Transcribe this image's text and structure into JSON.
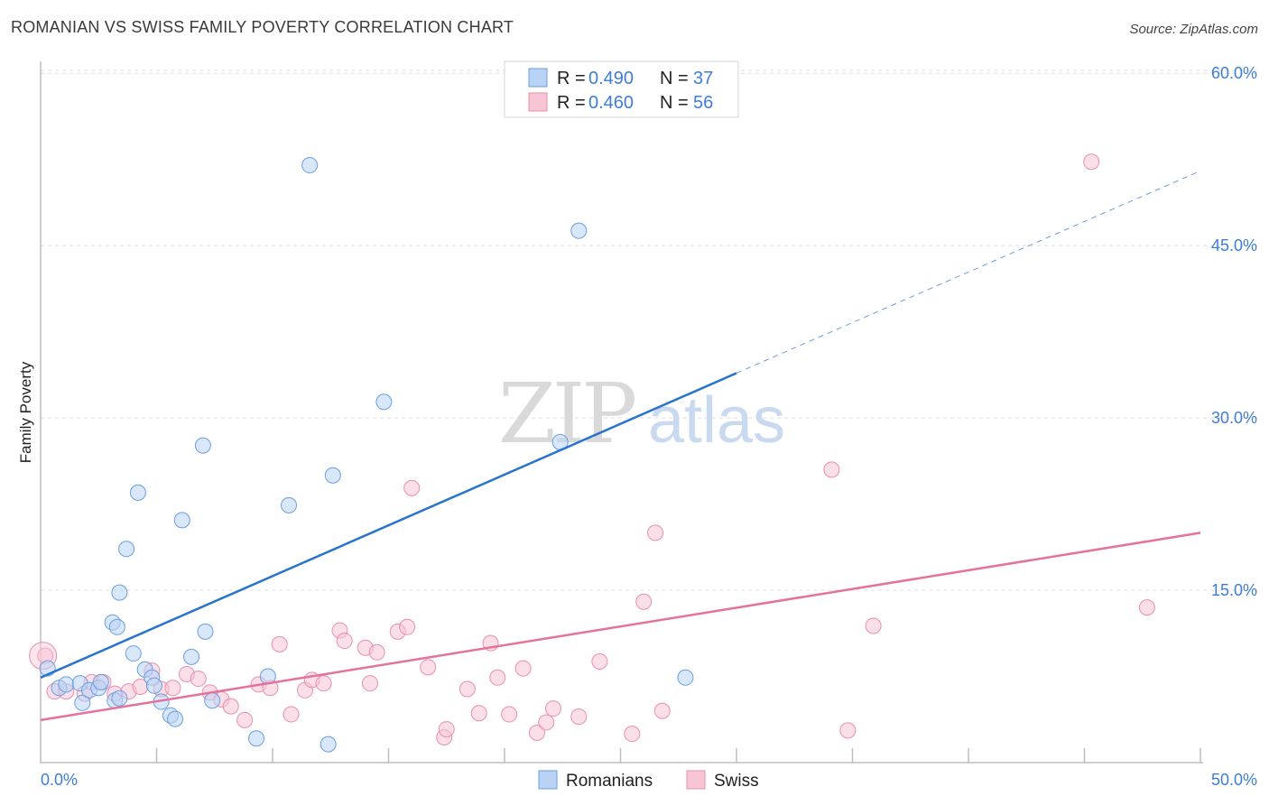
{
  "title": "ROMANIAN VS SWISS FAMILY POVERTY CORRELATION CHART",
  "source": "Source: ZipAtlas.com",
  "watermark": {
    "zip": "ZIP",
    "atlas": "atlas"
  },
  "legend_top": [
    {
      "r_label": "R =",
      "r_value": "0.490",
      "n_label": "N =",
      "n_value": "37"
    },
    {
      "r_label": "R =",
      "r_value": "0.460",
      "n_label": "N =",
      "n_value": "56"
    }
  ],
  "legend_bottom": [
    "Romanians",
    "Swiss"
  ],
  "colors": {
    "romanians_fill": "#b9d3f5",
    "romanians_stroke": "#6a9ee0",
    "romanians_line": "#2a73cf",
    "swiss_fill": "#f8c5d5",
    "swiss_stroke": "#ea8fac",
    "swiss_line": "#e5729a",
    "tick_text": "#3d7dd8",
    "grid": "#dddddd"
  },
  "chart_data": {
    "type": "scatter",
    "title": "ROMANIAN VS SWISS FAMILY POVERTY CORRELATION CHART",
    "xlabel": "",
    "ylabel": "Family Poverty",
    "xlim": [
      0,
      50
    ],
    "ylim": [
      0,
      63
    ],
    "x_tick_labels": [
      "0.0%",
      "50.0%"
    ],
    "y_ticks": [
      15,
      30,
      45,
      60
    ],
    "y_tick_labels": [
      "15.0%",
      "30.0%",
      "45.0%",
      "60.0%"
    ],
    "grid": true,
    "legend_position": "top-center",
    "series": [
      {
        "name": "Romanians",
        "r": 0.49,
        "n": 37,
        "trend": {
          "x": [
            0,
            30
          ],
          "y": [
            7.4,
            33.9
          ],
          "dashed_to": [
            50,
            51.5
          ]
        },
        "points": [
          [
            0.3,
            8.2
          ],
          [
            0.8,
            6.5
          ],
          [
            1.1,
            6.8
          ],
          [
            1.7,
            6.9
          ],
          [
            1.8,
            5.2
          ],
          [
            2.1,
            6.3
          ],
          [
            2.5,
            6.5
          ],
          [
            2.6,
            7.0
          ],
          [
            3.1,
            12.2
          ],
          [
            3.3,
            11.8
          ],
          [
            3.2,
            5.4
          ],
          [
            3.4,
            5.6
          ],
          [
            3.4,
            14.8
          ],
          [
            3.7,
            18.6
          ],
          [
            4.0,
            9.5
          ],
          [
            4.2,
            23.5
          ],
          [
            4.5,
            8.1
          ],
          [
            4.8,
            7.4
          ],
          [
            4.9,
            6.7
          ],
          [
            5.2,
            5.3
          ],
          [
            5.6,
            4.1
          ],
          [
            5.8,
            3.8
          ],
          [
            6.1,
            21.1
          ],
          [
            6.5,
            9.2
          ],
          [
            7.0,
            27.6
          ],
          [
            7.1,
            11.4
          ],
          [
            7.4,
            5.4
          ],
          [
            9.3,
            2.1
          ],
          [
            9.8,
            7.5
          ],
          [
            10.7,
            22.4
          ],
          [
            11.6,
            52.0
          ],
          [
            12.6,
            25.0
          ],
          [
            12.4,
            1.6
          ],
          [
            14.8,
            31.4
          ],
          [
            22.4,
            27.9
          ],
          [
            23.2,
            46.3
          ],
          [
            27.8,
            7.4
          ]
        ]
      },
      {
        "name": "Swiss",
        "r": 0.46,
        "n": 56,
        "trend": {
          "x": [
            0,
            50
          ],
          "y": [
            3.7,
            20.0
          ]
        },
        "points": [
          [
            0.2,
            9.3
          ],
          [
            0.6,
            6.2
          ],
          [
            1.1,
            6.2
          ],
          [
            1.9,
            6.0
          ],
          [
            2.2,
            7.0
          ],
          [
            2.7,
            7.0
          ],
          [
            3.2,
            6.0
          ],
          [
            3.8,
            6.2
          ],
          [
            4.3,
            6.6
          ],
          [
            4.8,
            8.0
          ],
          [
            5.2,
            6.4
          ],
          [
            5.7,
            6.5
          ],
          [
            6.3,
            7.7
          ],
          [
            6.8,
            7.3
          ],
          [
            7.3,
            6.1
          ],
          [
            7.8,
            5.5
          ],
          [
            8.2,
            4.9
          ],
          [
            8.8,
            3.7
          ],
          [
            9.4,
            6.8
          ],
          [
            9.9,
            6.5
          ],
          [
            10.3,
            10.3
          ],
          [
            10.8,
            4.2
          ],
          [
            11.4,
            6.3
          ],
          [
            11.7,
            7.2
          ],
          [
            12.2,
            6.9
          ],
          [
            12.9,
            11.5
          ],
          [
            13.1,
            10.6
          ],
          [
            14.0,
            10.0
          ],
          [
            14.5,
            9.6
          ],
          [
            14.2,
            6.9
          ],
          [
            15.4,
            11.4
          ],
          [
            15.8,
            11.8
          ],
          [
            16.0,
            23.9
          ],
          [
            16.7,
            8.3
          ],
          [
            17.4,
            2.2
          ],
          [
            17.5,
            2.9
          ],
          [
            18.4,
            6.4
          ],
          [
            18.9,
            4.3
          ],
          [
            19.4,
            10.4
          ],
          [
            19.7,
            7.4
          ],
          [
            20.2,
            4.2
          ],
          [
            20.8,
            8.2
          ],
          [
            21.4,
            2.6
          ],
          [
            21.8,
            3.5
          ],
          [
            22.1,
            4.7
          ],
          [
            23.2,
            4.0
          ],
          [
            24.1,
            8.8
          ],
          [
            25.5,
            2.5
          ],
          [
            26.0,
            14.0
          ],
          [
            26.5,
            20.0
          ],
          [
            26.8,
            4.5
          ],
          [
            34.1,
            25.5
          ],
          [
            34.8,
            2.8
          ],
          [
            35.9,
            11.9
          ],
          [
            45.3,
            52.3
          ],
          [
            47.7,
            13.5
          ]
        ]
      }
    ]
  }
}
